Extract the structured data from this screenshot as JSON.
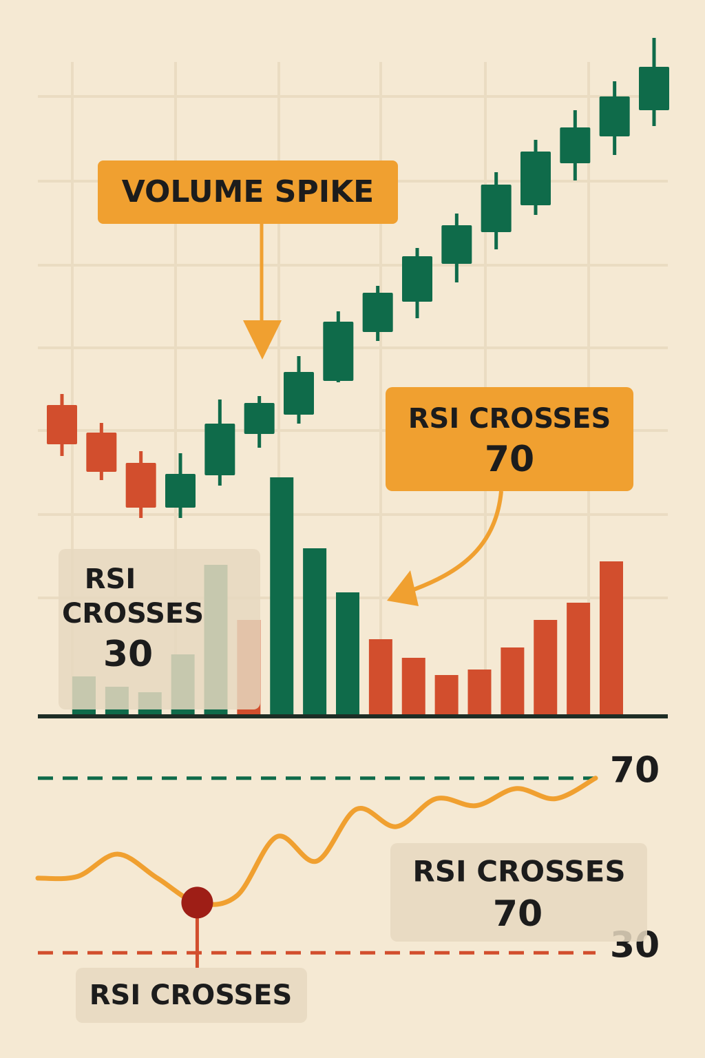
{
  "chart_data": [
    {
      "type": "candlestick",
      "ylim": [
        0,
        100
      ],
      "up_color": "#0f6b4a",
      "down_color": "#d24e2d",
      "open": [
        45.2,
        41.2,
        36.8,
        30.3,
        35.0,
        41.0,
        43.8,
        48.7,
        55.8,
        60.2,
        65.7,
        70.3,
        74.2,
        80.3,
        84.2,
        88.0
      ],
      "close": [
        39.5,
        35.5,
        30.3,
        35.2,
        42.5,
        45.5,
        50.0,
        57.3,
        61.5,
        66.8,
        71.3,
        77.2,
        82.0,
        85.5,
        90.0,
        94.3
      ],
      "high": [
        46.8,
        42.6,
        38.5,
        38.2,
        46.0,
        46.5,
        52.3,
        58.8,
        62.5,
        68.0,
        73.0,
        79.0,
        83.7,
        88.0,
        92.2,
        98.5
      ],
      "low": [
        37.8,
        34.3,
        28.8,
        28.8,
        33.5,
        39.0,
        42.5,
        48.5,
        54.5,
        57.8,
        63.0,
        67.8,
        72.8,
        77.8,
        81.5,
        85.7
      ]
    },
    {
      "type": "bar",
      "ylim": [
        0,
        100
      ],
      "values": [
        5.8,
        4.3,
        3.5,
        9.0,
        22.0,
        14.0,
        34.7,
        24.4,
        18.0,
        11.2,
        8.5,
        6.0,
        6.8,
        10.0,
        14.0,
        16.5,
        22.5
      ],
      "colors": [
        "#0f6b4a",
        "#0f6b4a",
        "#0f6b4a",
        "#0f6b4a",
        "#0f6b4a",
        "#d24e2d",
        "#0f6b4a",
        "#0f6b4a",
        "#0f6b4a",
        "#d24e2d",
        "#d24e2d",
        "#d24e2d",
        "#d24e2d",
        "#d24e2d",
        "#d24e2d",
        "#d24e2d",
        "#d24e2d"
      ]
    },
    {
      "type": "line",
      "ylim": [
        25,
        75
      ],
      "color": "#f0a030",
      "marker_color": "#9e1e16",
      "values": [
        47.1,
        47.5,
        52.6,
        47.1,
        41.5,
        43.1,
        56.6,
        51.0,
        62.9,
        58.9,
        65.3,
        63.7,
        67.6,
        65.3,
        70.0
      ],
      "levels": [
        70,
        30
      ],
      "level_colors": [
        "#0f6b4a",
        "#d24e2d"
      ]
    }
  ],
  "annotations": {
    "volume_spike": "VOLUME SPIKE",
    "rsi_70_top": [
      "RSI CROSSES",
      "70"
    ],
    "rsi_30_left": [
      "RSI",
      "CROSSES",
      "30"
    ],
    "rsi_70_bottom": [
      "RSI CROSSES",
      "70"
    ],
    "rsi_bottom": "RSI CROSSES"
  }
}
